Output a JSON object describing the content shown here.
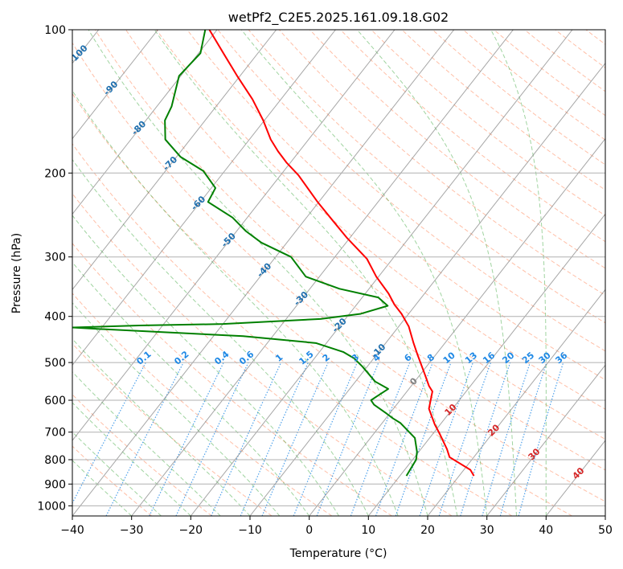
{
  "chart_data": {
    "type": "line",
    "title": "wetPf2_C2E5.2025.161.09.18.G02",
    "xlabel": "Temperature (°C)",
    "ylabel": "Pressure (hPa)",
    "xlim": [
      -40,
      50
    ],
    "ylim": [
      1050,
      100
    ],
    "y_scale": "log",
    "x_ticks": [
      "−40",
      "−30",
      "−20",
      "−10",
      "0",
      "10",
      "20",
      "30",
      "40",
      "50"
    ],
    "y_ticks": [
      "100",
      "200",
      "300",
      "400",
      "500",
      "600",
      "700",
      "800",
      "900",
      "1000"
    ],
    "grid": true,
    "skew": true,
    "colors": {
      "temperature": "#ff0000",
      "dewpoint": "#008000",
      "dry_adiabat": "#ff7f50",
      "moist_adiabat": "#2ca02c",
      "mixing_ratio": "#1f88e5",
      "isotherm": "#808080",
      "label_dark": "#1f6fae",
      "label_blue": "#1e88e5",
      "label_red": "#d62728"
    },
    "series": [
      {
        "name": "",
        "role": "temperature",
        "pressure": [
          865,
          840,
          790,
          760,
          705,
          675,
          625,
          575,
          560,
          530,
          480,
          455,
          420,
          395,
          378,
          358,
          330,
          303,
          274,
          252,
          230,
          202,
          190,
          180,
          170,
          155,
          140,
          125,
          113,
          100
        ],
        "temperature": [
          22.5,
          21.1,
          15.9,
          14.4,
          11.1,
          9.1,
          6.0,
          4.3,
          3.0,
          0.8,
          -3.2,
          -5.3,
          -8.3,
          -11.2,
          -13.6,
          -16.1,
          -20.4,
          -24.3,
          -30.4,
          -35.1,
          -40.2,
          -47.0,
          -50.7,
          -53.6,
          -56.4,
          -60.2,
          -64.8,
          -70.5,
          -75.4,
          -81.3
        ]
      },
      {
        "name": "",
        "role": "dewpoint",
        "pressure": [
          865,
          800,
          770,
          720,
          670,
          655,
          640,
          613,
          600,
          588,
          568,
          548,
          510,
          490,
          475,
          455,
          440,
          425,
          422,
          418,
          415,
          405,
          395,
          380,
          365,
          350,
          330,
          300,
          280,
          265,
          248,
          230,
          215,
          198,
          185,
          170,
          155,
          145,
          125,
          112,
          100
        ],
        "dewpoint": [
          11.1,
          10.6,
          9.7,
          7.5,
          3.1,
          1.2,
          -0.5,
          -3.8,
          -4.9,
          -4.4,
          -3.5,
          -6.7,
          -10.8,
          -13.3,
          -16.0,
          -21.8,
          -35.0,
          -60.5,
          -65.0,
          -54.0,
          -40.0,
          -24.2,
          -18.1,
          -14.6,
          -17.3,
          -25.0,
          -32.3,
          -37.4,
          -44.3,
          -48.4,
          -52.5,
          -58.7,
          -59.3,
          -63.6,
          -69.3,
          -74.2,
          -76.8,
          -77.5,
          -80.3,
          -79.7,
          -82.0
        ]
      }
    ],
    "isotherm_labels": [
      "-100",
      "-90",
      "-80",
      "-70",
      "-60",
      "-50",
      "-40",
      "-30",
      "-20",
      "-10",
      "0",
      "10",
      "20",
      "30",
      "40"
    ],
    "mixing_ratio_labels": [
      "0.1",
      "0.2",
      "0.4",
      "0.6",
      "1",
      "1.5",
      "2",
      "3",
      "4",
      "6",
      "8",
      "10",
      "13",
      "16",
      "20",
      "25",
      "30",
      "36"
    ]
  }
}
